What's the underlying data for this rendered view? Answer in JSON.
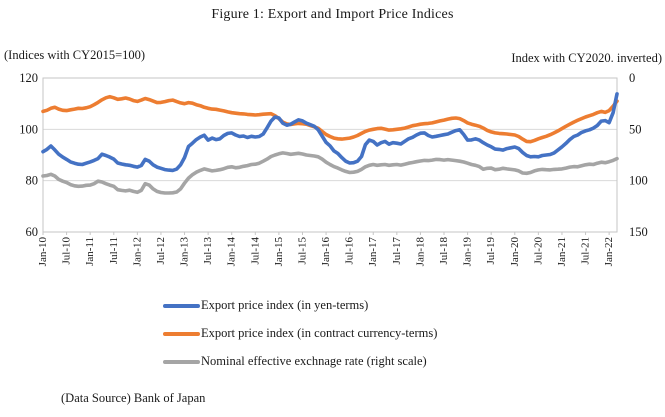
{
  "title": "Figure 1: Export and Import Price Indices",
  "source_note": "(Data Source) Bank of Japan",
  "colors": {
    "export_yen": "#4472C4",
    "export_contract": "#ED7D31",
    "neer": "#A5A5A5",
    "gridline": "#D9D9D9",
    "plot_border": "#C6C6C6",
    "text": "#1a1a1a"
  },
  "chart_data": {
    "type": "line",
    "title": "Figure 1: Export and Import Price Indices",
    "frequency": "monthly",
    "x_start": "Jan-2010",
    "x_end": "Mar-2022",
    "n_points": 147,
    "grid": "horizontal-only",
    "legend_position": "bottom",
    "left_axis": {
      "label": "(Indices with CY2015=100)",
      "range": [
        60,
        120
      ],
      "ticks": [
        120,
        100,
        80,
        60
      ]
    },
    "right_axis": {
      "label": "Index with CY2020. inverted)",
      "range": [
        0,
        150
      ],
      "ticks": [
        0,
        50,
        100,
        150
      ],
      "inverted": true
    },
    "x_tick_labels": [
      "Jan-10",
      "Jul-10",
      "Jan-11",
      "Jul-11",
      "Jan-12",
      "Jul-12",
      "Jan-13",
      "Jul-13",
      "Jan-14",
      "Jul-14",
      "Jan-15",
      "Jul-15",
      "Jan-16",
      "Jul-16",
      "Jan-17",
      "Jul-17",
      "Jan-18",
      "Jul-18",
      "Jan-19",
      "Jul-19",
      "Jan-20",
      "Jul-20",
      "Jan-21",
      "Jul-21",
      "Jan-22"
    ],
    "x_tick_every_n_points": 6,
    "series": [
      {
        "name": "Export price index (in contract currency-terms)",
        "axis": "left",
        "color": "#ED7D31",
        "values": [
          107.0,
          107.4,
          108.2,
          108.6,
          107.9,
          107.4,
          107.3,
          107.6,
          107.9,
          108.2,
          108.1,
          108.4,
          108.8,
          109.6,
          110.5,
          111.5,
          112.3,
          112.7,
          112.3,
          111.7,
          111.9,
          112.2,
          111.8,
          111.2,
          110.9,
          111.4,
          112.0,
          111.6,
          111.0,
          110.4,
          110.5,
          110.8,
          111.2,
          111.4,
          110.8,
          110.3,
          110.0,
          110.4,
          110.2,
          109.6,
          109.2,
          108.6,
          108.2,
          107.9,
          107.8,
          107.5,
          107.2,
          106.8,
          106.5,
          106.3,
          106.1,
          106.0,
          105.8,
          105.7,
          105.6,
          105.7,
          105.9,
          106.0,
          106.1,
          105.3,
          104.2,
          102.8,
          102.1,
          101.9,
          102.1,
          102.3,
          102.2,
          102.0,
          101.5,
          101.0,
          100.4,
          99.2,
          98.0,
          97.2,
          96.6,
          96.3,
          96.2,
          96.4,
          96.6,
          97.0,
          97.6,
          98.4,
          99.2,
          99.7,
          100.0,
          100.3,
          100.4,
          100.1,
          99.7,
          99.8,
          100.0,
          100.2,
          100.5,
          100.9,
          101.4,
          101.7,
          102.0,
          102.2,
          102.3,
          102.5,
          102.9,
          103.3,
          103.6,
          104.0,
          104.3,
          104.4,
          104.2,
          103.4,
          102.5,
          102.0,
          101.6,
          101.2,
          100.5,
          99.6,
          99.0,
          98.6,
          98.4,
          98.3,
          98.2,
          98.0,
          97.8,
          97.2,
          96.2,
          95.3,
          95.2,
          95.7,
          96.3,
          96.8,
          97.3,
          97.9,
          98.6,
          99.4,
          100.3,
          101.2,
          102.0,
          102.8,
          103.5,
          104.2,
          104.8,
          105.3,
          105.8,
          106.5,
          107.0,
          106.6,
          107.3,
          109.0,
          111.0
        ]
      },
      {
        "name": "Nominal effective exchnage rate (right scale)",
        "axis": "right",
        "color": "#A5A5A5",
        "values": [
          95.5,
          95.0,
          93.8,
          95.5,
          98.8,
          100.5,
          101.8,
          103.8,
          105.0,
          105.5,
          105.3,
          104.5,
          104.3,
          103.0,
          100.5,
          101.3,
          103.0,
          104.3,
          105.5,
          108.8,
          109.5,
          110.0,
          109.3,
          110.5,
          111.3,
          109.5,
          103.0,
          104.3,
          108.0,
          110.5,
          111.5,
          112.0,
          112.0,
          111.8,
          111.0,
          108.0,
          102.5,
          97.5,
          94.3,
          91.8,
          90.0,
          88.5,
          89.5,
          90.5,
          90.0,
          89.3,
          88.3,
          87.0,
          86.5,
          87.5,
          87.0,
          86.0,
          85.3,
          84.3,
          84.0,
          83.0,
          81.0,
          79.0,
          76.5,
          75.0,
          73.8,
          73.0,
          73.5,
          74.3,
          73.8,
          73.3,
          74.0,
          75.0,
          75.5,
          76.0,
          76.8,
          79.0,
          82.0,
          84.3,
          86.3,
          87.8,
          89.5,
          91.0,
          92.0,
          91.8,
          91.0,
          89.0,
          86.5,
          85.0,
          84.3,
          85.0,
          84.5,
          84.3,
          85.0,
          84.5,
          84.3,
          84.8,
          84.0,
          83.0,
          82.3,
          81.5,
          80.8,
          80.3,
          80.5,
          80.0,
          79.3,
          79.5,
          80.0,
          79.5,
          80.0,
          80.5,
          81.0,
          81.8,
          83.0,
          84.3,
          85.0,
          86.3,
          88.8,
          88.0,
          87.8,
          89.3,
          88.8,
          88.0,
          88.5,
          89.0,
          89.5,
          90.5,
          92.5,
          92.8,
          92.0,
          90.5,
          89.5,
          89.0,
          89.3,
          89.5,
          89.0,
          88.8,
          88.5,
          87.8,
          86.8,
          86.3,
          86.5,
          85.5,
          84.5,
          84.0,
          84.3,
          83.0,
          82.0,
          82.5,
          81.5,
          80.3,
          78.5
        ]
      },
      {
        "name": "Export price index (in yen-terms)",
        "axis": "left",
        "color": "#4472C4",
        "values": [
          91.3,
          92.2,
          93.5,
          92.0,
          90.3,
          89.2,
          88.3,
          87.3,
          86.8,
          86.4,
          86.3,
          86.8,
          87.3,
          87.9,
          88.6,
          90.3,
          89.8,
          89.2,
          88.4,
          86.9,
          86.5,
          86.2,
          86.0,
          85.6,
          85.3,
          85.9,
          88.3,
          87.6,
          86.2,
          85.3,
          84.8,
          84.3,
          84.1,
          84.0,
          84.5,
          86.2,
          89.0,
          93.3,
          94.6,
          96.0,
          97.0,
          97.7,
          95.8,
          96.6,
          96.0,
          96.3,
          97.6,
          98.4,
          98.6,
          97.8,
          97.2,
          97.4,
          96.8,
          97.3,
          97.0,
          97.2,
          98.2,
          100.6,
          103.2,
          104.8,
          104.4,
          102.4,
          101.6,
          102.0,
          102.9,
          103.7,
          103.3,
          102.4,
          101.8,
          101.2,
          99.8,
          97.4,
          94.9,
          93.6,
          91.6,
          90.6,
          89.0,
          87.6,
          86.9,
          87.0,
          87.6,
          89.4,
          94.0,
          95.8,
          95.3,
          93.9,
          94.8,
          95.3,
          94.2,
          94.8,
          94.6,
          94.3,
          95.3,
          96.3,
          96.9,
          97.8,
          98.5,
          98.6,
          97.6,
          97.0,
          97.3,
          97.6,
          97.9,
          98.2,
          98.9,
          99.5,
          99.8,
          98.0,
          95.8,
          95.9,
          96.3,
          95.8,
          94.8,
          93.9,
          93.2,
          92.3,
          92.2,
          91.9,
          92.5,
          92.8,
          93.1,
          92.5,
          91.0,
          89.8,
          89.3,
          89.4,
          89.3,
          89.8,
          90.0,
          90.2,
          90.8,
          92.0,
          93.2,
          94.5,
          96.0,
          97.2,
          97.8,
          98.8,
          99.4,
          99.8,
          100.5,
          101.5,
          103.2,
          103.4,
          102.6,
          106.5,
          113.8
        ]
      }
    ],
    "legend_order": [
      "Export price index (in yen-terms)",
      "Export price index (in contract currency-terms)",
      "Nominal effective exchnage rate (right scale)"
    ]
  }
}
